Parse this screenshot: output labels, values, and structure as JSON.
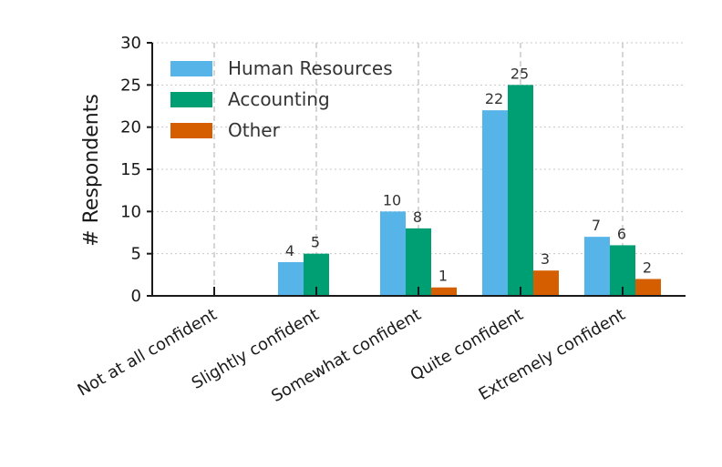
{
  "chart_data": {
    "type": "bar",
    "title": "",
    "xlabel": "",
    "ylabel": "# Respondents",
    "ylim": [
      0,
      30
    ],
    "yticks": [
      0,
      5,
      10,
      15,
      20,
      25,
      30
    ],
    "grid": true,
    "legend_position": "top-left",
    "categories": [
      "Not at all confident",
      "Slightly confident",
      "Somewhat confident",
      "Quite confident",
      "Extremely confident"
    ],
    "series": [
      {
        "name": "Human Resources",
        "color": "#56B4E9",
        "values": [
          0,
          4,
          10,
          22,
          7
        ]
      },
      {
        "name": "Accounting",
        "color": "#009E73",
        "values": [
          0,
          5,
          8,
          25,
          6
        ]
      },
      {
        "name": "Other",
        "color": "#D55E00",
        "values": [
          0,
          0,
          1,
          3,
          2
        ]
      }
    ],
    "data_labels": [
      [
        null,
        "4",
        "10",
        "22",
        "7"
      ],
      [
        null,
        "5",
        "8",
        "25",
        "6"
      ],
      [
        null,
        null,
        "1",
        "3",
        "2"
      ]
    ]
  }
}
